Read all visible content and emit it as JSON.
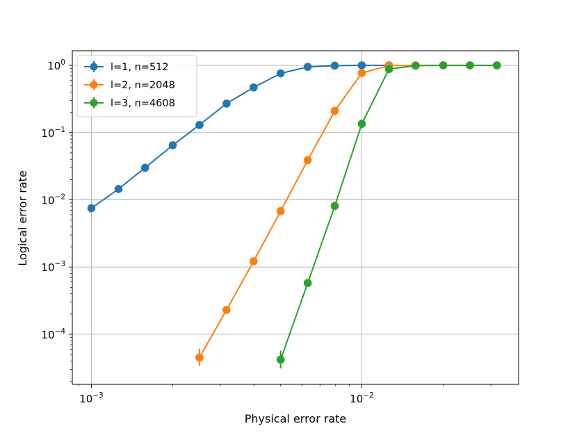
{
  "chart_data": {
    "type": "line",
    "title": "",
    "xlabel": "Physical error rate",
    "ylabel": "Logical error rate",
    "xscale": "log",
    "yscale": "log",
    "xlim": [
      0.00085,
      0.038
    ],
    "ylim": [
      1.8e-05,
      1.65
    ],
    "grid": true,
    "legend_position": "upper-left",
    "x_ticks": [
      {
        "base": "10",
        "exp": "−3"
      },
      {
        "base": "10",
        "exp": "−2"
      }
    ],
    "y_ticks": [
      {
        "base": "10",
        "exp": "0"
      },
      {
        "base": "10",
        "exp": "−1"
      },
      {
        "base": "10",
        "exp": "−2"
      },
      {
        "base": "10",
        "exp": "−3"
      },
      {
        "base": "10",
        "exp": "−4"
      }
    ],
    "series": [
      {
        "name": "l=1, n=512",
        "color": "#1f77b4",
        "x": [
          0.001,
          0.00126,
          0.00158,
          0.002,
          0.00251,
          0.00316,
          0.00398,
          0.00501,
          0.00631,
          0.00794,
          0.01,
          0.0126
        ],
        "y": [
          0.0075,
          0.0145,
          0.03,
          0.065,
          0.13,
          0.27,
          0.47,
          0.76,
          0.95,
          0.99,
          1.0,
          1.0
        ]
      },
      {
        "name": "l=2, n=2048",
        "color": "#ff7f0e",
        "x": [
          0.00251,
          0.00316,
          0.00398,
          0.00501,
          0.00631,
          0.00794,
          0.01,
          0.0126,
          0.0158,
          0.02,
          0.0251,
          0.0316
        ],
        "y": [
          4.5e-05,
          0.00023,
          0.00122,
          0.0068,
          0.039,
          0.21,
          0.77,
          0.99,
          1.0,
          1.0,
          1.0,
          1.0
        ],
        "err_low": [
          3.4e-05,
          0,
          0,
          0,
          0,
          0,
          0,
          0,
          0,
          0,
          0,
          0
        ],
        "err_high": [
          6.1e-05,
          0,
          0,
          0,
          0,
          0,
          0,
          0,
          0,
          0,
          0,
          0
        ]
      },
      {
        "name": "l=3, n=4608",
        "color": "#2ca02c",
        "x": [
          0.00501,
          0.00631,
          0.00794,
          0.01,
          0.0126,
          0.0158,
          0.02,
          0.0251,
          0.0316
        ],
        "y": [
          4.2e-05,
          0.00058,
          0.0081,
          0.135,
          0.88,
          0.99,
          1.0,
          1.0,
          1.0
        ],
        "err_low": [
          3.1e-05,
          0,
          0,
          0,
          0,
          0,
          0,
          0,
          0
        ],
        "err_high": [
          5.7e-05,
          0,
          0,
          0,
          0,
          0,
          0,
          0,
          0
        ]
      }
    ]
  }
}
